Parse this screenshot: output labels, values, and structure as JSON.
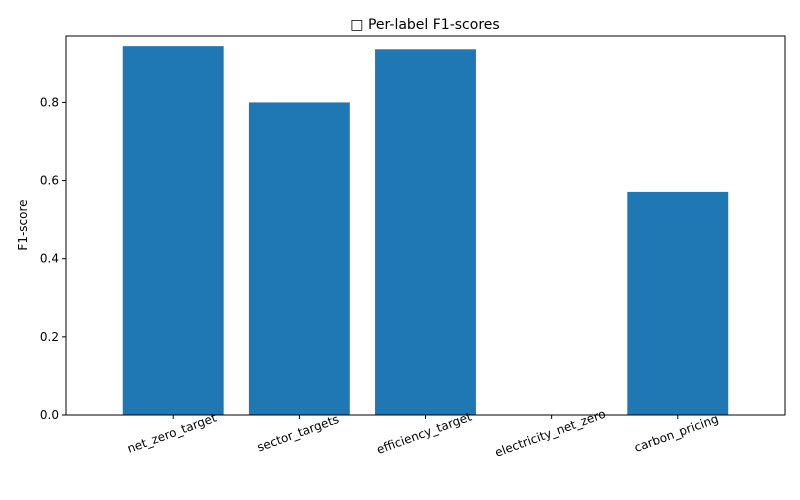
{
  "chart_data": {
    "type": "bar",
    "title": "□ Per-label F1-scores",
    "xlabel": "",
    "ylabel": "F1-score",
    "categories": [
      "net_zero_target",
      "sector_targets",
      "efficiency_target",
      "electricity_net_zero",
      "carbon_pricing"
    ],
    "values": [
      0.944,
      0.8,
      0.936,
      0.0,
      0.571
    ],
    "ylim": [
      0,
      0.97
    ],
    "yticks": [
      "0.0",
      "0.2",
      "0.4",
      "0.6",
      "0.8"
    ],
    "grid": false,
    "legend": "none",
    "bar_color": "#1f77b4",
    "x_tick_rotation_deg": 20
  }
}
